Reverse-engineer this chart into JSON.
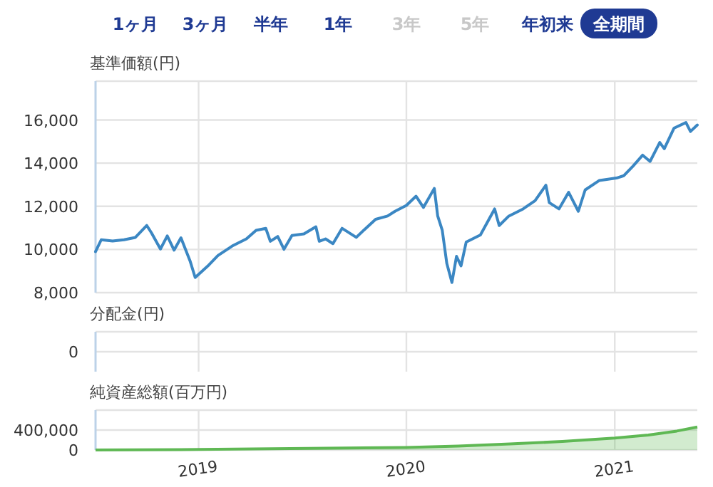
{
  "chart_data": [
    {
      "type": "line",
      "title": "基準価額(円)",
      "annotations": [
        "1ヶ月",
        "3ヶ月",
        "半年",
        "1年",
        "3年",
        "5年",
        "年初来",
        "全期間"
      ],
      "xlim": [
        "2018-07-04",
        "2021-05-26"
      ],
      "xticks": [
        {
          "value": "2019-01-01",
          "label": null
        },
        {
          "value": "2020-01-01",
          "label": null
        },
        {
          "value": "2021-01-01",
          "label": null
        }
      ],
      "ylim": [
        8000,
        17800
      ],
      "yticks": [
        {
          "value": 8000,
          "label": "8,000"
        },
        {
          "value": 10000,
          "label": "10,000"
        },
        {
          "value": 12000,
          "label": "12,000"
        },
        {
          "value": 14000,
          "label": "14,000"
        },
        {
          "value": 16000,
          "label": "16,000"
        }
      ],
      "grid": true,
      "tick_labels": "y",
      "x": [
        "2018-07-04",
        "2018-07-14",
        "2018-08-03",
        "2018-08-23",
        "2018-09-12",
        "2018-10-02",
        "2018-10-10",
        "2018-10-26",
        "2018-11-07",
        "2018-11-19",
        "2018-12-01",
        "2018-12-17",
        "2018-12-26",
        "2019-01-19",
        "2019-02-04",
        "2019-03-01",
        "2019-03-26",
        "2019-04-12",
        "2019-04-29",
        "2019-05-07",
        "2019-05-20",
        "2019-05-31",
        "2019-06-14",
        "2019-07-05",
        "2019-07-26",
        "2019-08-01",
        "2019-08-12",
        "2019-08-25",
        "2019-09-10",
        "2019-10-05",
        "2019-10-18",
        "2019-11-08",
        "2019-11-29",
        "2019-12-12",
        "2020-01-01",
        "2020-01-18",
        "2020-01-31",
        "2020-02-19",
        "2020-02-25",
        "2020-03-04",
        "2020-03-12",
        "2020-03-21",
        "2020-03-29",
        "2020-04-06",
        "2020-04-15",
        "2020-05-10",
        "2020-06-04",
        "2020-06-12",
        "2020-06-29",
        "2020-07-24",
        "2020-08-14",
        "2020-09-02",
        "2020-09-08",
        "2020-09-25",
        "2020-10-12",
        "2020-10-29",
        "2020-11-10",
        "2020-12-05",
        "2021-01-04",
        "2021-01-17",
        "2021-02-02",
        "2021-02-19",
        "2021-03-04",
        "2021-03-21",
        "2021-03-29",
        "2021-04-15",
        "2021-05-06",
        "2021-05-14",
        "2021-05-26"
      ],
      "series": [
        {
          "color": "#3b87c3",
          "values": [
            9900,
            10450,
            10390,
            10450,
            10560,
            11110,
            10780,
            10020,
            10630,
            9970,
            10540,
            9470,
            8700,
            9280,
            9720,
            10160,
            10490,
            10890,
            10980,
            10380,
            10600,
            10010,
            10650,
            10720,
            11050,
            10380,
            10490,
            10270,
            10980,
            10560,
            10890,
            11400,
            11550,
            11770,
            12040,
            12470,
            11950,
            12830,
            11550,
            10890,
            9350,
            8470,
            9680,
            9240,
            10340,
            10670,
            11880,
            11110,
            11550,
            11880,
            12260,
            12980,
            12170,
            11880,
            12650,
            11770,
            12760,
            13200,
            13310,
            13420,
            13860,
            14370,
            14080,
            14960,
            14670,
            15620,
            15880,
            15470,
            15770
          ]
        }
      ]
    },
    {
      "type": "other",
      "title": "分配金(円)",
      "annotations": [
        "0"
      ]
    },
    {
      "type": "area",
      "title": "純資産総額(百万円)",
      "xlim": [
        "2018-07-04",
        "2021-05-26"
      ],
      "xticks": [
        {
          "value": "2019-01-01",
          "label": "2019"
        },
        {
          "value": "2020-01-01",
          "label": "2020"
        },
        {
          "value": "2021-01-01",
          "label": "2021"
        }
      ],
      "ylim": [
        0,
        800000
      ],
      "yticks": [
        0,
        {
          "value": 400000,
          "label": "400,000"
        }
      ],
      "grid": true,
      "x": [
        "2018-07-04",
        "2019-01-01",
        "2020-01-01",
        "2020-04-01",
        "2020-07-01",
        "2020-10-01",
        "2021-01-01",
        "2021-03-01",
        "2021-04-20",
        "2021-05-26"
      ],
      "series": [
        {
          "color": "#5fb854",
          "values": [
            0,
            10000,
            50000,
            80000,
            120000,
            170000,
            240000,
            300000,
            380000,
            460000
          ]
        }
      ]
    }
  ]
}
